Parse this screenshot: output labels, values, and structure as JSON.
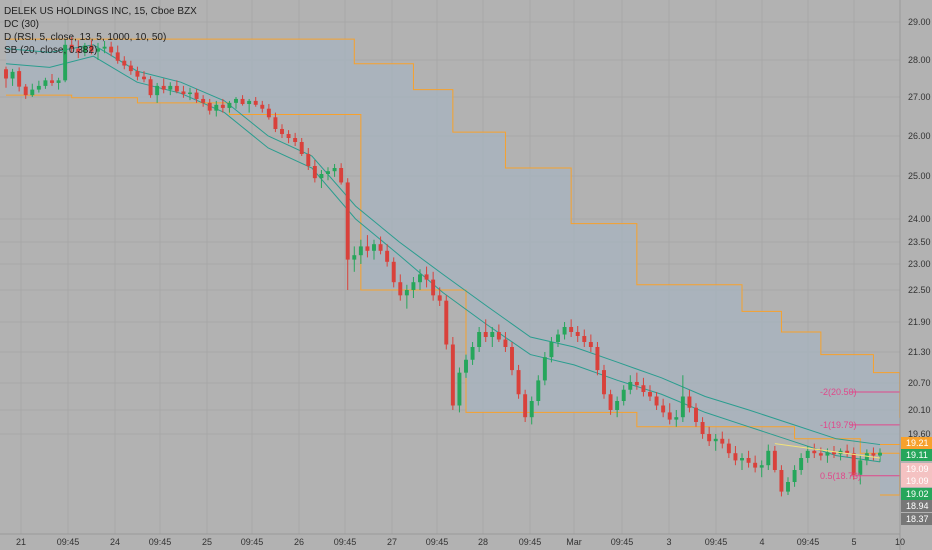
{
  "legend": {
    "title": "DELEK US HOLDINGS INC, 15, Cboe BZX",
    "dc": "DC (30)",
    "d": "D (RSI, 5, close, 13, 5, 1000, 10, 50)",
    "third": "SB (20, close, 0.382)"
  },
  "chart_data": {
    "type": "candlestick",
    "title": "DELEK US HOLDINGS INC, 15, Cboe BZX",
    "y_axis_ticks": [
      "29.00",
      "28.00",
      "27.00",
      "26.00",
      "25.00",
      "24.00",
      "23.50",
      "23.00",
      "22.50",
      "21.90",
      "21.30",
      "20.70",
      "20.10",
      "19.60"
    ],
    "x_axis_ticks": [
      "21",
      "09:45",
      "24",
      "09:45",
      "25",
      "09:45",
      "26",
      "09:45",
      "27",
      "09:45",
      "28",
      "09:45",
      "Mar",
      "09:45",
      "3",
      "09:45",
      "4",
      "09:45",
      "5",
      "10"
    ],
    "price_tags": [
      {
        "label": "19.21",
        "color": "#f7a12c"
      },
      {
        "label": "19.11",
        "color": "#26a65b"
      },
      {
        "label": "19.09",
        "color": "#f4c2c2"
      },
      {
        "label": "19.09",
        "color": "#f4c2c2"
      },
      {
        "label": "19.02",
        "color": "#26a65b"
      },
      {
        "label": "18.94",
        "color": "#777777"
      },
      {
        "label": "18.37",
        "color": "#777777"
      }
    ],
    "fib_levels": [
      {
        "label": "-2(20.50)",
        "value": 20.5
      },
      {
        "label": "-1(19.79)",
        "value": 19.79
      },
      {
        "label": "0.5(18.73)",
        "value": 18.73
      }
    ],
    "candles": [
      [
        27.75,
        27.82,
        27.25,
        27.5
      ],
      [
        27.5,
        27.76,
        27.3,
        27.68
      ],
      [
        27.7,
        27.8,
        27.15,
        27.28
      ],
      [
        27.28,
        27.35,
        26.95,
        27.05
      ],
      [
        27.05,
        27.36,
        27.0,
        27.2
      ],
      [
        27.2,
        27.44,
        27.12,
        27.3
      ],
      [
        27.3,
        27.52,
        27.22,
        27.45
      ],
      [
        27.45,
        27.62,
        27.3,
        27.38
      ],
      [
        27.38,
        27.52,
        27.2,
        27.45
      ],
      [
        27.45,
        28.55,
        27.4,
        28.4
      ],
      [
        28.4,
        28.6,
        28.2,
        28.3
      ],
      [
        28.3,
        28.52,
        28.05,
        28.2
      ],
      [
        28.2,
        28.45,
        28.1,
        28.38
      ],
      [
        28.38,
        28.52,
        28.15,
        28.22
      ],
      [
        28.22,
        28.45,
        28.0,
        28.3
      ],
      [
        28.3,
        28.5,
        28.18,
        28.35
      ],
      [
        28.35,
        28.48,
        28.1,
        28.2
      ],
      [
        28.2,
        28.38,
        27.9,
        27.98
      ],
      [
        27.98,
        28.1,
        27.75,
        27.85
      ],
      [
        27.85,
        27.98,
        27.6,
        27.7
      ],
      [
        27.7,
        27.82,
        27.45,
        27.55
      ],
      [
        27.55,
        27.7,
        27.4,
        27.48
      ],
      [
        27.48,
        27.56,
        26.98,
        27.05
      ],
      [
        27.05,
        27.38,
        26.85,
        27.3
      ],
      [
        27.3,
        27.5,
        27.1,
        27.2
      ],
      [
        27.2,
        27.4,
        27.05,
        27.3
      ],
      [
        27.3,
        27.45,
        27.1,
        27.15
      ],
      [
        27.15,
        27.3,
        26.98,
        27.08
      ],
      [
        27.08,
        27.25,
        26.92,
        27.12
      ],
      [
        27.12,
        27.22,
        26.85,
        26.95
      ],
      [
        26.95,
        27.05,
        26.75,
        26.85
      ],
      [
        26.85,
        26.95,
        26.55,
        26.65
      ],
      [
        26.65,
        26.9,
        26.5,
        26.8
      ],
      [
        26.8,
        26.95,
        26.6,
        26.72
      ],
      [
        26.72,
        26.9,
        26.6,
        26.85
      ],
      [
        26.85,
        27.0,
        26.7,
        26.95
      ],
      [
        26.95,
        27.05,
        26.78,
        26.82
      ],
      [
        26.82,
        26.95,
        26.6,
        26.9
      ],
      [
        26.9,
        27.0,
        26.75,
        26.8
      ],
      [
        26.8,
        26.9,
        26.6,
        26.7
      ],
      [
        26.7,
        26.82,
        26.42,
        26.48
      ],
      [
        26.48,
        26.6,
        26.1,
        26.18
      ],
      [
        26.18,
        26.3,
        25.95,
        26.05
      ],
      [
        26.05,
        26.15,
        25.82,
        25.95
      ],
      [
        25.95,
        26.08,
        25.75,
        25.85
      ],
      [
        25.85,
        25.95,
        25.5,
        25.55
      ],
      [
        25.55,
        25.7,
        25.15,
        25.25
      ],
      [
        25.25,
        25.4,
        24.85,
        24.95
      ],
      [
        24.95,
        25.15,
        24.72,
        25.05
      ],
      [
        25.05,
        25.22,
        24.9,
        25.12
      ],
      [
        25.12,
        25.3,
        24.98,
        25.2
      ],
      [
        25.2,
        25.32,
        24.8,
        24.85
      ],
      [
        24.85,
        24.95,
        22.5,
        23.1
      ],
      [
        23.1,
        23.4,
        22.85,
        23.2
      ],
      [
        23.2,
        23.55,
        23.0,
        23.4
      ],
      [
        23.4,
        23.65,
        23.15,
        23.3
      ],
      [
        23.3,
        23.55,
        23.1,
        23.45
      ],
      [
        23.45,
        23.62,
        23.22,
        23.3
      ],
      [
        23.3,
        23.45,
        22.95,
        23.05
      ],
      [
        23.05,
        23.15,
        22.55,
        22.65
      ],
      [
        22.65,
        22.8,
        22.3,
        22.4
      ],
      [
        22.4,
        22.6,
        22.15,
        22.5
      ],
      [
        22.5,
        22.75,
        22.35,
        22.65
      ],
      [
        22.65,
        22.9,
        22.5,
        22.8
      ],
      [
        22.8,
        22.95,
        22.55,
        22.7
      ],
      [
        22.7,
        22.85,
        22.3,
        22.4
      ],
      [
        22.4,
        22.55,
        22.2,
        22.3
      ],
      [
        22.3,
        22.4,
        21.35,
        21.45
      ],
      [
        21.45,
        21.6,
        20.1,
        20.2
      ],
      [
        20.2,
        21.0,
        20.05,
        20.9
      ],
      [
        20.9,
        21.25,
        20.8,
        21.15
      ],
      [
        21.15,
        21.5,
        21.05,
        21.4
      ],
      [
        21.4,
        21.8,
        21.3,
        21.7
      ],
      [
        21.7,
        21.95,
        21.5,
        21.6
      ],
      [
        21.6,
        21.8,
        21.4,
        21.7
      ],
      [
        21.7,
        21.85,
        21.5,
        21.55
      ],
      [
        21.55,
        21.7,
        21.3,
        21.4
      ],
      [
        21.4,
        21.5,
        20.85,
        20.95
      ],
      [
        20.95,
        21.05,
        20.35,
        20.45
      ],
      [
        20.45,
        20.55,
        19.85,
        19.95
      ],
      [
        19.95,
        20.4,
        19.8,
        20.3
      ],
      [
        20.3,
        20.85,
        20.2,
        20.75
      ],
      [
        20.75,
        21.3,
        20.65,
        21.2
      ],
      [
        21.2,
        21.6,
        21.1,
        21.5
      ],
      [
        21.5,
        21.75,
        21.4,
        21.65
      ],
      [
        21.65,
        21.9,
        21.55,
        21.8
      ],
      [
        21.8,
        21.95,
        21.6,
        21.7
      ],
      [
        21.7,
        21.82,
        21.5,
        21.62
      ],
      [
        21.62,
        21.75,
        21.4,
        21.5
      ],
      [
        21.5,
        21.65,
        21.3,
        21.4
      ],
      [
        21.4,
        21.5,
        20.85,
        20.95
      ],
      [
        20.95,
        21.05,
        20.35,
        20.45
      ],
      [
        20.45,
        20.55,
        20.0,
        20.1
      ],
      [
        20.1,
        20.4,
        19.95,
        20.3
      ],
      [
        20.3,
        20.65,
        20.2,
        20.55
      ],
      [
        20.55,
        20.85,
        20.45,
        20.72
      ],
      [
        20.72,
        20.9,
        20.55,
        20.65
      ],
      [
        20.65,
        20.8,
        20.4,
        20.5
      ],
      [
        20.5,
        20.65,
        20.3,
        20.4
      ],
      [
        20.4,
        20.5,
        20.1,
        20.2
      ],
      [
        20.2,
        20.35,
        19.95,
        20.05
      ],
      [
        20.05,
        20.25,
        19.8,
        19.9
      ],
      [
        19.9,
        20.1,
        19.75,
        19.95
      ],
      [
        19.95,
        20.85,
        19.85,
        20.4
      ],
      [
        20.4,
        20.55,
        20.05,
        20.15
      ],
      [
        20.15,
        20.25,
        19.75,
        19.85
      ],
      [
        19.85,
        19.95,
        19.5,
        19.6
      ],
      [
        19.6,
        19.75,
        19.35,
        19.45
      ],
      [
        19.45,
        19.6,
        19.25,
        19.5
      ],
      [
        19.5,
        19.65,
        19.3,
        19.4
      ],
      [
        19.4,
        19.5,
        19.1,
        19.2
      ],
      [
        19.2,
        19.35,
        18.95,
        19.05
      ],
      [
        19.05,
        19.2,
        18.85,
        19.1
      ],
      [
        19.1,
        19.25,
        18.9,
        19.0
      ],
      [
        19.0,
        19.15,
        18.8,
        18.9
      ],
      [
        18.9,
        19.05,
        18.7,
        18.95
      ],
      [
        18.95,
        19.38,
        18.85,
        19.25
      ],
      [
        19.25,
        19.35,
        18.8,
        18.85
      ],
      [
        18.85,
        18.95,
        18.3,
        18.4
      ],
      [
        18.4,
        18.7,
        18.33,
        18.6
      ],
      [
        18.6,
        18.95,
        18.5,
        18.85
      ],
      [
        18.85,
        19.2,
        18.75,
        19.1
      ],
      [
        19.1,
        19.35,
        19.0,
        19.25
      ],
      [
        19.25,
        19.4,
        19.1,
        19.2
      ],
      [
        19.2,
        19.32,
        19.05,
        19.15
      ],
      [
        19.15,
        19.3,
        19.0,
        19.22
      ],
      [
        19.22,
        19.35,
        19.1,
        19.18
      ],
      [
        19.18,
        19.3,
        19.05,
        19.25
      ],
      [
        19.25,
        19.38,
        19.12,
        19.2
      ],
      [
        19.2,
        19.32,
        18.65,
        18.75
      ],
      [
        18.75,
        19.15,
        18.55,
        19.05
      ],
      [
        19.05,
        19.28,
        18.95,
        19.2
      ],
      [
        19.2,
        19.32,
        19.05,
        19.15
      ],
      [
        19.15,
        19.3,
        19.02,
        19.21
      ]
    ],
    "dc_upper": [
      [
        0,
        28.55
      ],
      [
        52,
        28.55
      ],
      [
        53,
        27.9
      ],
      [
        62,
        27.2
      ],
      [
        68,
        26.1
      ],
      [
        76,
        25.2
      ],
      [
        86,
        23.9
      ],
      [
        96,
        22.6
      ],
      [
        112,
        22.1
      ],
      [
        118,
        21.7
      ],
      [
        124,
        21.25
      ],
      [
        132,
        20.9
      ],
      [
        136,
        19.95
      ],
      [
        142,
        19.45
      ],
      [
        148,
        19.38
      ]
    ],
    "dc_lower": [
      [
        0,
        27.05
      ],
      [
        10,
        26.98
      ],
      [
        20,
        26.85
      ],
      [
        34,
        26.55
      ],
      [
        54,
        22.5
      ],
      [
        70,
        20.05
      ],
      [
        96,
        19.75
      ],
      [
        120,
        19.5
      ],
      [
        130,
        19.2
      ],
      [
        136,
        18.33
      ],
      [
        148,
        18.33
      ]
    ],
    "ema_upper": [
      [
        0,
        28.3
      ],
      [
        10,
        28.2
      ],
      [
        20,
        28.4
      ],
      [
        30,
        27.7
      ],
      [
        40,
        27.4
      ],
      [
        50,
        26.9
      ],
      [
        60,
        26.0
      ],
      [
        70,
        25.5
      ],
      [
        80,
        24.3
      ],
      [
        90,
        23.5
      ],
      [
        100,
        22.8
      ],
      [
        110,
        22.2
      ],
      [
        120,
        21.6
      ],
      [
        130,
        21.4
      ],
      [
        140,
        21.1
      ],
      [
        150,
        20.8
      ],
      [
        160,
        20.4
      ],
      [
        170,
        20.1
      ],
      [
        180,
        19.8
      ],
      [
        190,
        19.5
      ],
      [
        200,
        19.38
      ]
    ],
    "ema_lower": [
      [
        0,
        27.9
      ],
      [
        10,
        27.8
      ],
      [
        20,
        28.1
      ],
      [
        30,
        27.4
      ],
      [
        40,
        27.1
      ],
      [
        50,
        26.6
      ],
      [
        60,
        25.7
      ],
      [
        70,
        25.2
      ],
      [
        80,
        24.0
      ],
      [
        90,
        23.2
      ],
      [
        100,
        22.45
      ],
      [
        110,
        21.85
      ],
      [
        120,
        21.25
      ],
      [
        130,
        21.05
      ],
      [
        140,
        20.75
      ],
      [
        150,
        20.45
      ],
      [
        160,
        20.05
      ],
      [
        170,
        19.75
      ],
      [
        180,
        19.45
      ],
      [
        190,
        19.15
      ],
      [
        200,
        19.02
      ]
    ]
  }
}
